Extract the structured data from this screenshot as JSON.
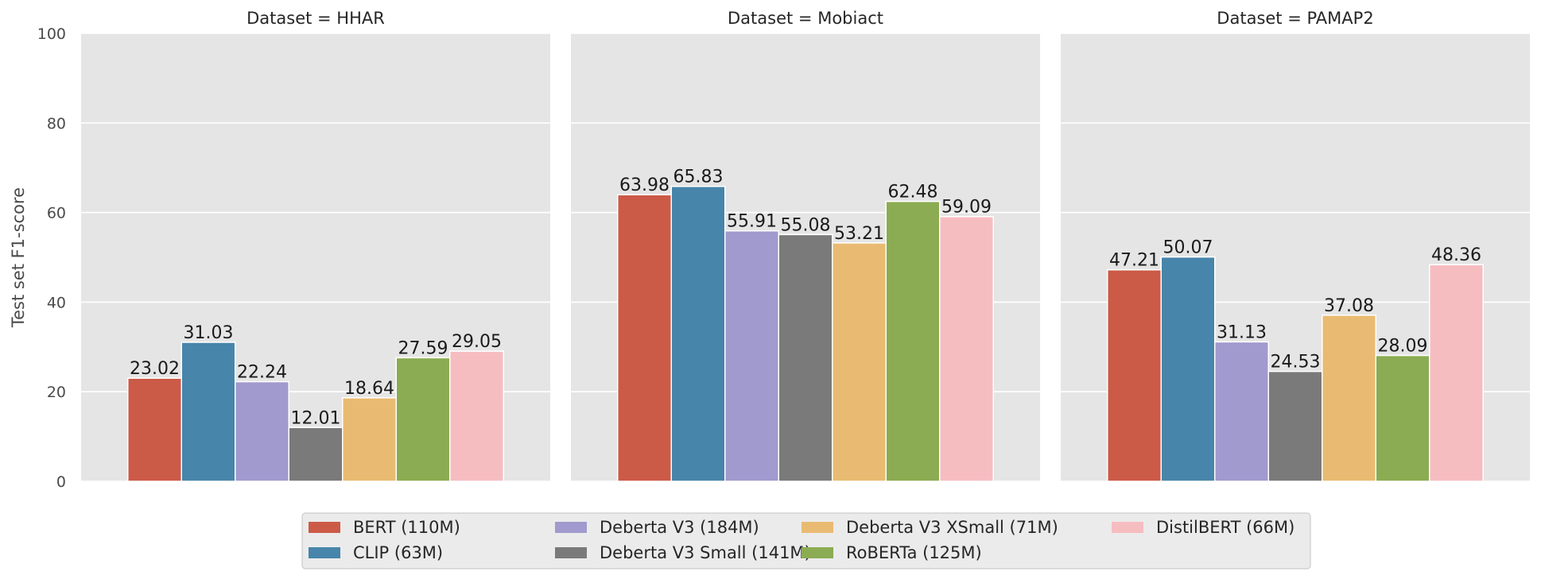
{
  "chart_data": {
    "type": "bar",
    "ylabel": "Test set F1-score",
    "ylim": [
      0,
      100
    ],
    "yticks": [
      0,
      20,
      40,
      60,
      80,
      100
    ],
    "grid": true,
    "legend_position": "bottom-center",
    "series": [
      {
        "name": "BERT (110M)",
        "color": "#cb5a47"
      },
      {
        "name": "CLIP (63M)",
        "color": "#4785aa"
      },
      {
        "name": "Deberta V3 (184M)",
        "color": "#a09ace"
      },
      {
        "name": "Deberta V3 Small (141M)",
        "color": "#7a7a7a"
      },
      {
        "name": "Deberta V3 XSmall (71M)",
        "color": "#e9bb72"
      },
      {
        "name": "RoBERTa (125M)",
        "color": "#8bac52"
      },
      {
        "name": "DistilBERT (66M)",
        "color": "#f6bdc1"
      }
    ],
    "panels": [
      {
        "title": "Dataset = HHAR",
        "values": [
          23.02,
          31.03,
          22.24,
          12.01,
          18.64,
          27.59,
          29.05
        ],
        "labels": [
          "23.02",
          "31.03",
          "22.24",
          "12.01",
          "18.64",
          "27.59",
          "29.05"
        ]
      },
      {
        "title": "Dataset = Mobiact",
        "values": [
          63.98,
          65.83,
          55.91,
          55.08,
          53.21,
          62.48,
          59.09
        ],
        "labels": [
          "63.98",
          "65.83",
          "55.91",
          "55.08",
          "53.21",
          "62.48",
          "59.09"
        ]
      },
      {
        "title": "Dataset = PAMAP2",
        "values": [
          47.21,
          50.07,
          31.13,
          24.53,
          37.08,
          28.09,
          48.36
        ],
        "labels": [
          "47.21",
          "50.07",
          "31.13",
          "24.53",
          "37.08",
          "28.09",
          "48.36"
        ]
      }
    ]
  }
}
